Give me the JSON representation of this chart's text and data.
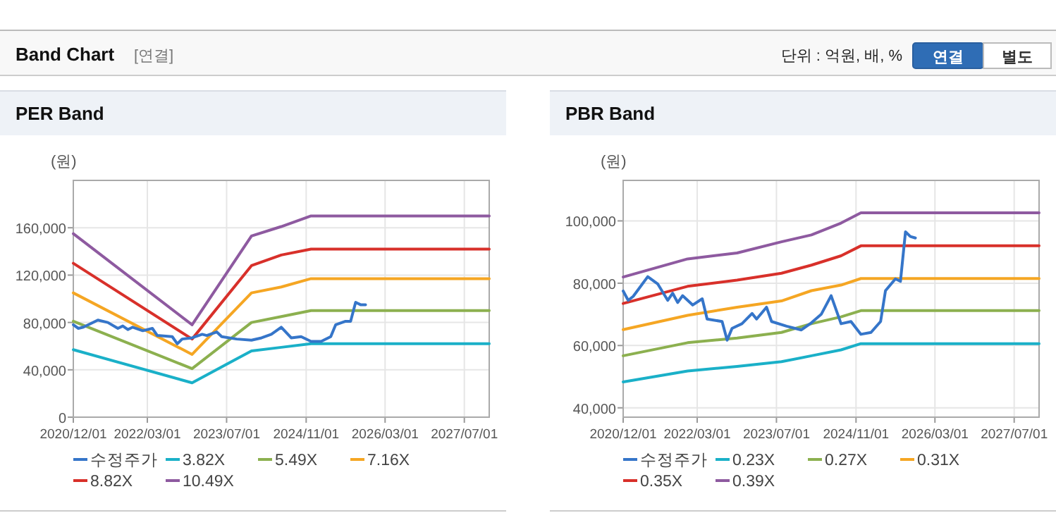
{
  "chart_data": [
    {
      "type": "other",
      "title": "Band Chart",
      "annotations": [
        "[연결]",
        "단위 : 억원, 배, %",
        "연결",
        "별도"
      ]
    },
    {
      "type": "line",
      "title": "PER Band",
      "ylabel": "(원)",
      "xlim": [
        "2020-12-01",
        "2027-12-01"
      ],
      "ylim": [
        0,
        200000
      ],
      "xticks": [
        {
          "value": "2020-12-01",
          "label": "2020/12/01"
        },
        {
          "value": "2022-03-01",
          "label": "2022/03/01"
        },
        {
          "value": "2023-07-01",
          "label": "2023/07/01"
        },
        {
          "value": "2024-11-01",
          "label": "2024/11/01"
        },
        {
          "value": "2026-03-01",
          "label": "2026/03/01"
        },
        {
          "value": "2027-07-01",
          "label": "2027/07/01"
        }
      ],
      "yticks": [
        0,
        {
          "value": 40000,
          "label": "40,000"
        },
        {
          "value": 80000,
          "label": "80,000"
        },
        {
          "value": 120000,
          "label": "120,000"
        },
        {
          "value": 160000,
          "label": "160,000"
        }
      ],
      "grid": true,
      "legend": "bottom",
      "series": [
        {
          "name": "수정주가",
          "color": "#3575c9",
          "x": [
            "2020-12",
            "2021-01",
            "2021-02",
            "2021-05",
            "2021-07",
            "2021-09",
            "2021-10",
            "2021-11",
            "2021-12",
            "2022-02",
            "2022-04",
            "2022-05",
            "2022-08",
            "2022-09",
            "2022-10",
            "2022-12",
            "2023-02",
            "2023-03",
            "2023-05",
            "2023-06",
            "2023-09",
            "2023-12",
            "2024-02",
            "2024-04",
            "2024-06",
            "2024-08",
            "2024-10",
            "2024-12",
            "2025-02",
            "2025-04",
            "2025-05",
            "2025-07",
            "2025-08",
            "2025-09",
            "2025-10",
            "2025-11"
          ],
          "values": [
            78000,
            75000,
            76000,
            82000,
            80000,
            75000,
            77000,
            74000,
            76000,
            73000,
            75000,
            69000,
            68000,
            62000,
            66000,
            67000,
            70000,
            69000,
            72000,
            68000,
            66000,
            65000,
            67000,
            70000,
            76000,
            67000,
            68000,
            64000,
            64000,
            68000,
            78000,
            81000,
            81000,
            97000,
            95000,
            95000
          ]
        },
        {
          "name": "3.82X",
          "color": "#1ab0c8",
          "x": [
            "2020-12",
            "2022-12",
            "2023-12",
            "2024-06",
            "2024-12",
            "2027-12"
          ],
          "values": [
            57000,
            29000,
            56000,
            59000,
            62000,
            62000
          ]
        },
        {
          "name": "5.49X",
          "color": "#8cb04f",
          "x": [
            "2020-12",
            "2022-12",
            "2023-12",
            "2024-06",
            "2024-12",
            "2027-12"
          ],
          "values": [
            81000,
            41000,
            80000,
            85000,
            90000,
            90000
          ]
        },
        {
          "name": "7.16X",
          "color": "#f5a623",
          "x": [
            "2020-12",
            "2022-12",
            "2023-12",
            "2024-06",
            "2024-12",
            "2027-12"
          ],
          "values": [
            105000,
            53000,
            105000,
            110000,
            117000,
            117000
          ]
        },
        {
          "name": "8.82X",
          "color": "#d8302a",
          "x": [
            "2020-12",
            "2022-12",
            "2023-12",
            "2024-06",
            "2024-12",
            "2027-12"
          ],
          "values": [
            130000,
            66000,
            128000,
            137000,
            142000,
            142000
          ]
        },
        {
          "name": "10.49X",
          "color": "#8e5aa0",
          "x": [
            "2020-12",
            "2022-12",
            "2023-12",
            "2024-06",
            "2024-12",
            "2027-12"
          ],
          "values": [
            155000,
            78000,
            153000,
            161000,
            170000,
            170000
          ]
        }
      ]
    },
    {
      "type": "line",
      "title": "PBR Band",
      "ylabel": "(원)",
      "xlim": [
        "2020-12-01",
        "2027-12-01"
      ],
      "ylim": [
        37000,
        113000
      ],
      "xticks": [
        {
          "value": "2020-12-01",
          "label": "2020/12/01"
        },
        {
          "value": "2022-03-01",
          "label": "2022/03/01"
        },
        {
          "value": "2023-07-01",
          "label": "2023/07/01"
        },
        {
          "value": "2024-11-01",
          "label": "2024/11/01"
        },
        {
          "value": "2026-03-01",
          "label": "2026/03/01"
        },
        {
          "value": "2027-07-01",
          "label": "2027/07/01"
        }
      ],
      "yticks": [
        {
          "value": 40000,
          "label": "40,000"
        },
        {
          "value": 60000,
          "label": "60,000"
        },
        {
          "value": 80000,
          "label": "80,000"
        },
        {
          "value": 100000,
          "label": "100,000"
        }
      ],
      "grid": true,
      "legend": "bottom",
      "series": [
        {
          "name": "수정주가",
          "color": "#3575c9",
          "x": [
            "2020-12",
            "2021-01",
            "2021-02",
            "2021-05",
            "2021-07",
            "2021-09",
            "2021-10",
            "2021-11",
            "2021-12",
            "2022-02",
            "2022-04",
            "2022-05",
            "2022-08",
            "2022-09",
            "2022-10",
            "2022-12",
            "2023-02",
            "2023-03",
            "2023-05",
            "2023-06",
            "2023-09",
            "2023-12",
            "2024-02",
            "2024-04",
            "2024-06",
            "2024-08",
            "2024-10",
            "2024-12",
            "2025-02",
            "2025-04",
            "2025-05",
            "2025-07",
            "2025-08",
            "2025-09",
            "2025-10",
            "2025-11"
          ],
          "values": [
            77500,
            74500,
            75800,
            82100,
            79800,
            74500,
            76800,
            73800,
            76000,
            73000,
            75000,
            68500,
            67700,
            61700,
            65500,
            67000,
            70300,
            68500,
            72300,
            67700,
            66200,
            65000,
            67300,
            70000,
            76000,
            67000,
            67700,
            63600,
            64200,
            67700,
            77600,
            81400,
            80600,
            96500,
            95000,
            94500
          ]
        },
        {
          "name": "0.23X",
          "color": "#1ab0c8",
          "x": [
            "2020-12",
            "2022-01",
            "2022-11",
            "2023-08",
            "2024-02",
            "2024-08",
            "2024-12",
            "2027-12"
          ],
          "values": [
            48300,
            51800,
            53300,
            54800,
            56700,
            58600,
            60600,
            60600
          ]
        },
        {
          "name": "0.27X",
          "color": "#8cb04f",
          "x": [
            "2020-12",
            "2022-01",
            "2022-11",
            "2023-08",
            "2024-02",
            "2024-08",
            "2024-12",
            "2027-12"
          ],
          "values": [
            56700,
            60900,
            62400,
            64200,
            67000,
            69200,
            71200,
            71200
          ]
        },
        {
          "name": "0.31X",
          "color": "#f5a623",
          "x": [
            "2020-12",
            "2022-01",
            "2022-11",
            "2023-08",
            "2024-02",
            "2024-08",
            "2024-12",
            "2027-12"
          ],
          "values": [
            65100,
            69700,
            72300,
            74300,
            77600,
            79400,
            81500,
            81500
          ]
        },
        {
          "name": "0.35X",
          "color": "#d8302a",
          "x": [
            "2020-12",
            "2022-01",
            "2022-11",
            "2023-08",
            "2024-02",
            "2024-08",
            "2024-12",
            "2027-12"
          ],
          "values": [
            73500,
            79000,
            81000,
            83200,
            85800,
            88800,
            92000,
            92000
          ]
        },
        {
          "name": "0.39X",
          "color": "#8e5aa0",
          "x": [
            "2020-12",
            "2022-01",
            "2022-11",
            "2023-08",
            "2024-02",
            "2024-08",
            "2024-12",
            "2027-12"
          ],
          "values": [
            82000,
            87800,
            89700,
            93300,
            95500,
            99300,
            102600,
            102600
          ]
        }
      ]
    }
  ]
}
